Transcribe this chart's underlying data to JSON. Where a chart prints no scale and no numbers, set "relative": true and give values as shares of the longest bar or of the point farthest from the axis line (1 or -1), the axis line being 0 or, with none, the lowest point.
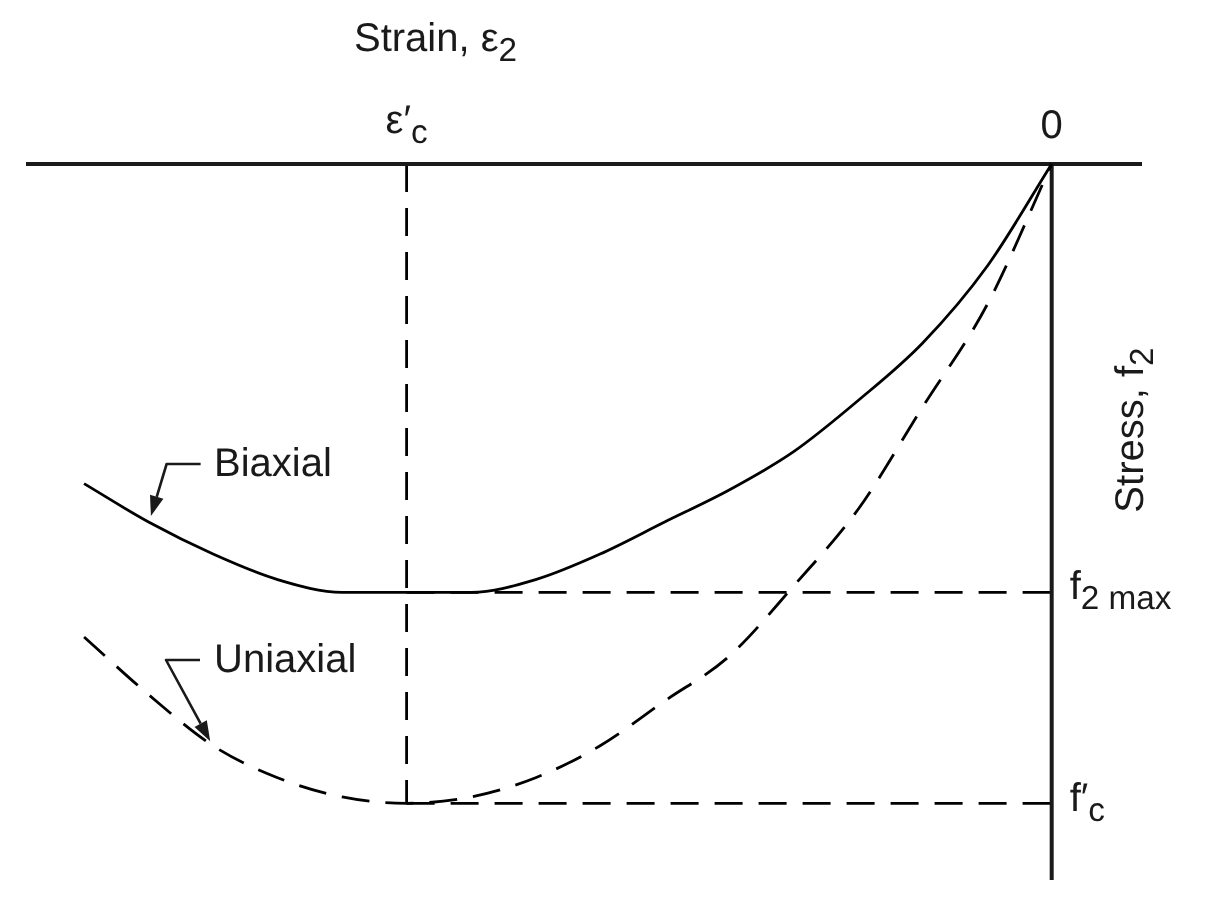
{
  "chart_data": {
    "type": "line",
    "xlabel": "Strain, ε$_{2}$",
    "ylabel": "Stress, f$_{2}$",
    "relative": true,
    "categories": [
      null,
      null,
      null,
      null,
      null,
      "ε′$_{c}$",
      null,
      null,
      null,
      null,
      null,
      null,
      null,
      null,
      null,
      "0"
    ],
    "series": [
      {
        "name": "Biaxial",
        "color": "#000000",
        "values": [
          -0.5,
          -0.56,
          -0.61,
          -0.65,
          -0.67,
          -0.67,
          -0.67,
          -0.65,
          -0.61,
          -0.56,
          -0.51,
          -0.45,
          -0.37,
          -0.28,
          -0.16,
          0
        ]
      },
      {
        "name": "Uniaxial",
        "color": "#000000",
        "line_style": "dashed",
        "values": [
          -0.74,
          -0.83,
          -0.91,
          -0.96,
          -0.99,
          -1,
          -0.99,
          -0.96,
          -0.91,
          -0.84,
          -0.77,
          -0.66,
          -0.54,
          -0.38,
          -0.22,
          0
        ]
      }
    ],
    "ref_lines": [
      {
        "axis": "x",
        "value": "ε′$_{c}$",
        "line_style": "dashed",
        "color": "#000000"
      },
      {
        "axis": "y",
        "value": -0.67,
        "label": "f$_{2 max}$",
        "line_style": "dashed",
        "color": "#000000"
      },
      {
        "axis": "y",
        "value": -1,
        "label": "f′$_{c}$",
        "line_style": "dashed",
        "color": "#000000"
      }
    ]
  }
}
